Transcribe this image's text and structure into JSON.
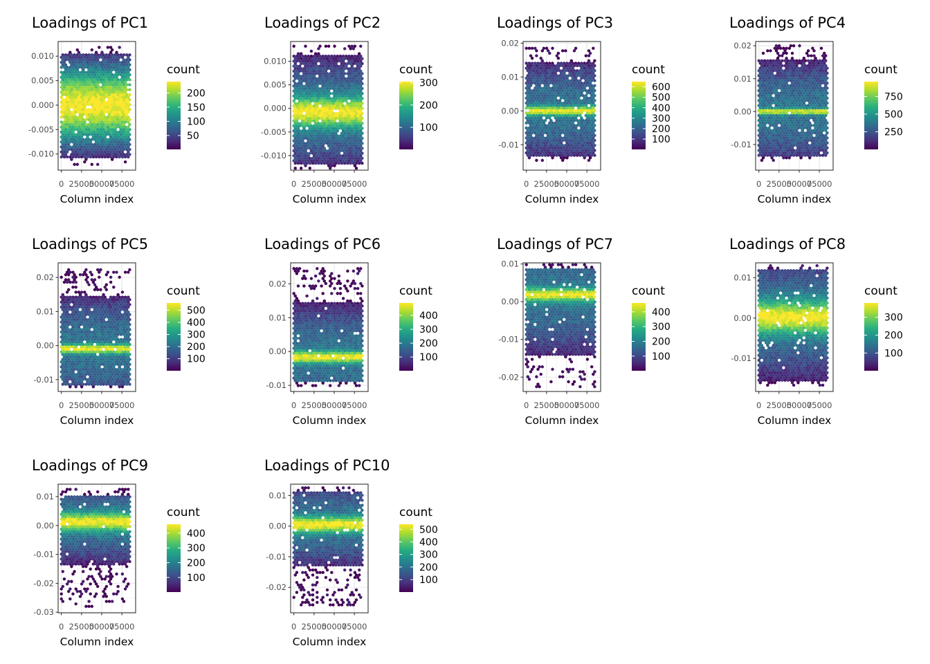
{
  "chart_data": [
    {
      "type": "hexbin",
      "title": "Loadings of PC1",
      "xlabel": "Column index",
      "ylabel": "",
      "x_ticks": [
        "0",
        "25000",
        "50000",
        "75000"
      ],
      "x_tick_values": [
        0,
        25000,
        50000,
        75000
      ],
      "xlim": [
        -4000,
        92000
      ],
      "x_data_range": [
        0,
        86000
      ],
      "y_ticks": [
        "0.010",
        "0.005",
        "0.000",
        "-0.005",
        "-0.010"
      ],
      "y_tick_values": [
        0.01,
        0.005,
        0.0,
        -0.005,
        -0.01
      ],
      "ylim": [
        -0.0133,
        0.013
      ],
      "y_core": [
        -0.011,
        0.0105
      ],
      "y_extremes": [
        -0.0122,
        0.0118
      ],
      "y_center": 0.0,
      "peak_width": 0.0045,
      "legend_title": "count",
      "legend_ticks": [
        50,
        100,
        150,
        200
      ],
      "legend_range": [
        1,
        240
      ]
    },
    {
      "type": "hexbin",
      "title": "Loadings of PC2",
      "xlabel": "Column index",
      "ylabel": "",
      "x_ticks": [
        "0",
        "25000",
        "50000",
        "75000"
      ],
      "x_tick_values": [
        0,
        25000,
        50000,
        75000
      ],
      "xlim": [
        -4000,
        92000
      ],
      "x_data_range": [
        0,
        86000
      ],
      "y_ticks": [
        "0.010",
        "0.005",
        "0.000",
        "-0.005",
        "-0.010"
      ],
      "y_tick_values": [
        0.01,
        0.005,
        0.0,
        -0.005,
        -0.01
      ],
      "ylim": [
        -0.0131,
        0.0142
      ],
      "y_core": [
        -0.0118,
        0.0112
      ],
      "y_extremes": [
        -0.0128,
        0.0132
      ],
      "y_center": -0.0008,
      "peak_width": 0.0022,
      "legend_title": "count",
      "legend_ticks": [
        100,
        200,
        300
      ],
      "legend_range": [
        1,
        305
      ]
    },
    {
      "type": "hexbin",
      "title": "Loadings of PC3",
      "xlabel": "Column index",
      "ylabel": "",
      "x_ticks": [
        "0",
        "25000",
        "50000",
        "75000"
      ],
      "x_tick_values": [
        0,
        25000,
        50000,
        75000
      ],
      "xlim": [
        -4000,
        92000
      ],
      "x_data_range": [
        0,
        86000
      ],
      "y_ticks": [
        "0.02",
        "0.01",
        "0.00",
        "-0.01"
      ],
      "y_tick_values": [
        0.02,
        0.01,
        0.0,
        -0.01
      ],
      "ylim": [
        -0.0175,
        0.0205
      ],
      "y_core": [
        -0.0135,
        0.0145
      ],
      "y_extremes": [
        -0.0152,
        0.0185
      ],
      "y_center": 0.0,
      "peak_width": 0.0009,
      "legend_title": "count",
      "legend_ticks": [
        100,
        200,
        300,
        400,
        500,
        600
      ],
      "legend_range": [
        1,
        650
      ]
    },
    {
      "type": "hexbin",
      "title": "Loadings of PC4",
      "xlabel": "Column index",
      "ylabel": "",
      "x_ticks": [
        "0",
        "25000",
        "50000",
        "75000"
      ],
      "x_tick_values": [
        0,
        25000,
        50000,
        75000
      ],
      "xlim": [
        -4000,
        92000
      ],
      "x_data_range": [
        0,
        86000
      ],
      "y_ticks": [
        "0.02",
        "0.01",
        "0.00",
        "-0.01"
      ],
      "y_tick_values": [
        0.02,
        0.01,
        0.0,
        -0.01
      ],
      "ylim": [
        -0.0178,
        0.0213
      ],
      "y_core": [
        -0.014,
        0.0158
      ],
      "y_extremes": [
        -0.0155,
        0.02
      ],
      "y_center": 0.0,
      "peak_width": 0.0006,
      "legend_title": "count",
      "legend_ticks": [
        250,
        500,
        750
      ],
      "legend_range": [
        1,
        960
      ]
    },
    {
      "type": "hexbin",
      "title": "Loadings of PC5",
      "xlabel": "Column index",
      "ylabel": "",
      "x_ticks": [
        "0",
        "25000",
        "50000",
        "75000"
      ],
      "x_tick_values": [
        0,
        25000,
        50000,
        75000
      ],
      "xlim": [
        -4000,
        92000
      ],
      "x_data_range": [
        0,
        86000
      ],
      "y_ticks": [
        "0.02",
        "0.01",
        "0.00",
        "-0.01"
      ],
      "y_tick_values": [
        0.02,
        0.01,
        0.0,
        -0.01
      ],
      "ylim": [
        -0.0135,
        0.0243
      ],
      "y_core": [
        -0.0118,
        0.0148
      ],
      "y_extremes": [
        -0.0125,
        0.023
      ],
      "y_center": -0.001,
      "peak_width": 0.0009,
      "legend_title": "count",
      "legend_ticks": [
        100,
        200,
        300,
        400,
        500
      ],
      "legend_range": [
        1,
        560
      ]
    },
    {
      "type": "hexbin",
      "title": "Loadings of PC6",
      "xlabel": "Column index",
      "ylabel": "",
      "x_ticks": [
        "0",
        "25000",
        "50000",
        "75000"
      ],
      "x_tick_values": [
        0,
        25000,
        50000,
        75000
      ],
      "xlim": [
        -4000,
        92000
      ],
      "x_data_range": [
        0,
        86000
      ],
      "y_ticks": [
        "0.02",
        "0.01",
        "0.00",
        "-0.01"
      ],
      "y_tick_values": [
        0.02,
        0.01,
        0.0,
        -0.01
      ],
      "ylim": [
        -0.0118,
        0.0262
      ],
      "y_core": [
        -0.0092,
        0.0145
      ],
      "y_extremes": [
        -0.0105,
        0.0245
      ],
      "y_center": -0.0017,
      "peak_width": 0.0012,
      "legend_title": "count",
      "legend_ticks": [
        100,
        200,
        300,
        400
      ],
      "legend_range": [
        1,
        490
      ]
    },
    {
      "type": "hexbin",
      "title": "Loadings of PC7",
      "xlabel": "Column index",
      "ylabel": "",
      "x_ticks": [
        "0",
        "25000",
        "50000",
        "75000"
      ],
      "x_tick_values": [
        0,
        25000,
        50000,
        75000
      ],
      "xlim": [
        -4000,
        92000
      ],
      "x_data_range": [
        0,
        86000
      ],
      "y_ticks": [
        "0.01",
        "0.00",
        "-0.01",
        "-0.02"
      ],
      "y_tick_values": [
        0.01,
        0.0,
        -0.01,
        -0.02
      ],
      "ylim": [
        -0.0238,
        0.0103
      ],
      "y_core": [
        -0.0145,
        0.0088
      ],
      "y_extremes": [
        -0.023,
        0.0098
      ],
      "y_center": 0.0018,
      "peak_width": 0.0012,
      "legend_title": "count",
      "legend_ticks": [
        100,
        200,
        300,
        400
      ],
      "legend_range": [
        1,
        460
      ]
    },
    {
      "type": "hexbin",
      "title": "Loadings of PC8",
      "xlabel": "Column index",
      "ylabel": "",
      "x_ticks": [
        "0",
        "25000",
        "50000",
        "75000"
      ],
      "x_tick_values": [
        0,
        25000,
        50000,
        75000
      ],
      "xlim": [
        -4000,
        92000
      ],
      "x_data_range": [
        0,
        86000
      ],
      "y_ticks": [
        "0.01",
        "0.00",
        "-0.01"
      ],
      "y_tick_values": [
        0.01,
        0.0,
        -0.01
      ],
      "ylim": [
        -0.0182,
        0.0137
      ],
      "y_core": [
        -0.0155,
        0.0122
      ],
      "y_extremes": [
        -0.017,
        0.013
      ],
      "y_center": 0.0002,
      "peak_width": 0.0028,
      "legend_title": "count",
      "legend_ticks": [
        100,
        200,
        300
      ],
      "legend_range": [
        1,
        380
      ]
    },
    {
      "type": "hexbin",
      "title": "Loadings of PC9",
      "xlabel": "Column index",
      "ylabel": "",
      "x_ticks": [
        "0",
        "25000",
        "50000",
        "75000"
      ],
      "x_tick_values": [
        0,
        25000,
        50000,
        75000
      ],
      "xlim": [
        -4000,
        92000
      ],
      "x_data_range": [
        0,
        86000
      ],
      "y_ticks": [
        "0.01",
        "0.00",
        "-0.01",
        "-0.02",
        "-0.03"
      ],
      "y_tick_values": [
        0.01,
        0.0,
        -0.01,
        -0.02,
        -0.03
      ],
      "ylim": [
        -0.0302,
        0.0143
      ],
      "y_core": [
        -0.0135,
        0.0105
      ],
      "y_extremes": [
        -0.0285,
        0.0125
      ],
      "y_center": 0.0012,
      "peak_width": 0.0022,
      "legend_title": "count",
      "legend_ticks": [
        100,
        200,
        300,
        400
      ],
      "legend_range": [
        1,
        460
      ]
    },
    {
      "type": "hexbin",
      "title": "Loadings of PC10",
      "xlabel": "Column index",
      "ylabel": "",
      "x_ticks": [
        "0",
        "25000",
        "50000",
        "75000"
      ],
      "x_tick_values": [
        0,
        25000,
        50000,
        75000
      ],
      "xlim": [
        -4000,
        92000
      ],
      "x_data_range": [
        0,
        86000
      ],
      "y_ticks": [
        "0.01",
        "0.00",
        "-0.01",
        "-0.02"
      ],
      "y_tick_values": [
        0.01,
        0.0,
        -0.01,
        -0.02
      ],
      "ylim": [
        -0.0283,
        0.0137
      ],
      "y_core": [
        -0.0135,
        0.0112
      ],
      "y_extremes": [
        -0.0265,
        0.0125
      ],
      "y_center": 0.0005,
      "peak_width": 0.0018,
      "legend_title": "count",
      "legend_ticks": [
        100,
        200,
        300,
        400,
        500
      ],
      "legend_range": [
        1,
        540
      ]
    }
  ]
}
